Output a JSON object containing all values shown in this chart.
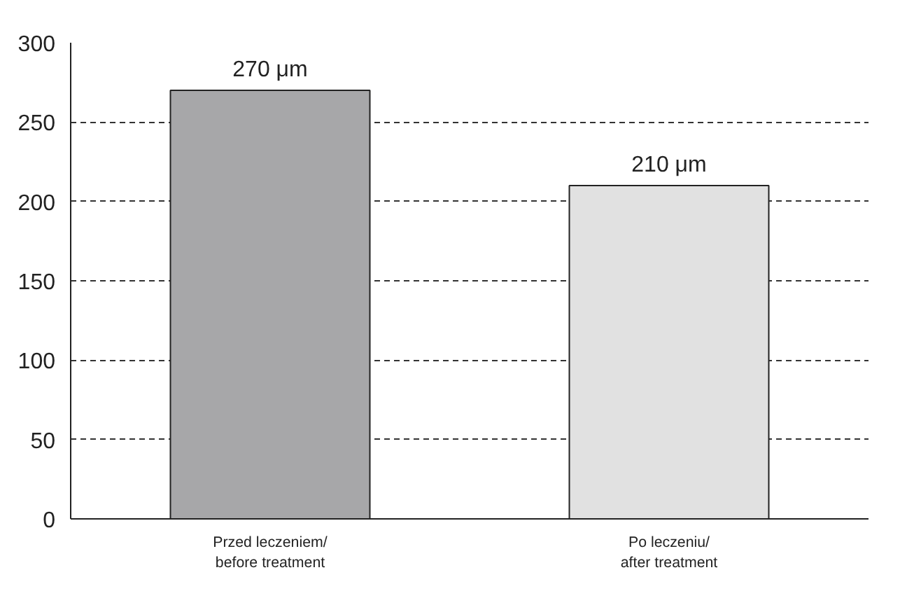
{
  "chart_data": {
    "type": "bar",
    "categories": [
      "Przed leczeniem/\nbefore treatment",
      "Po leczeniu/\nafter treatment"
    ],
    "values": [
      270,
      210
    ],
    "colors": [
      "#a7a7a9",
      "#e1e1e1"
    ],
    "value_labels": [
      "270 μm",
      "210 μm"
    ],
    "ylim": [
      0,
      300
    ],
    "yticks": [
      0,
      50,
      100,
      150,
      200,
      250,
      300
    ],
    "grid": "y",
    "line_style": "dashed"
  }
}
